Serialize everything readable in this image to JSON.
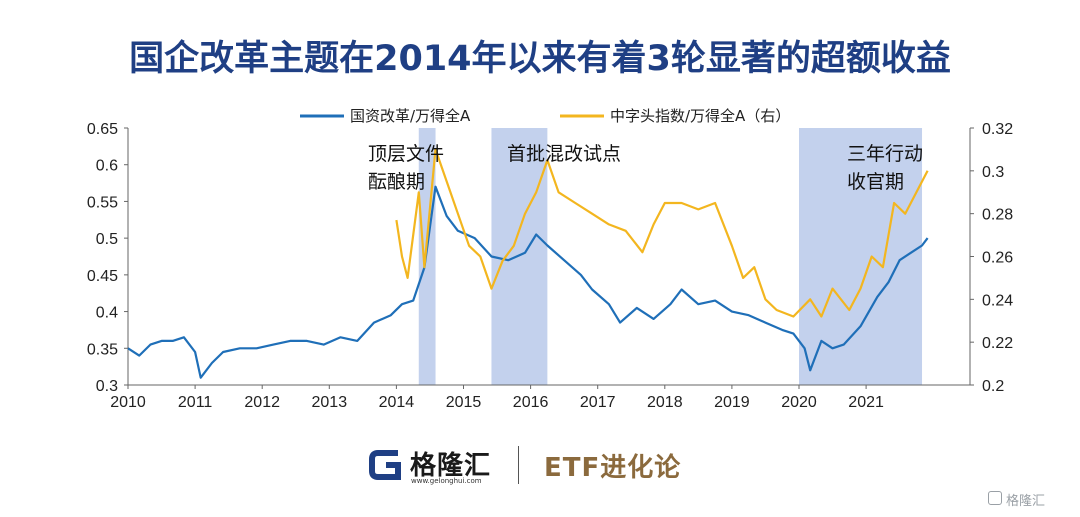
{
  "title": "国企改革主题在2014年以来有着3轮显著的超额收益",
  "chart_data": {
    "type": "line",
    "x_ticks": [
      "2010",
      "2011",
      "2012",
      "2013",
      "2014",
      "2015",
      "2016",
      "2017",
      "2018",
      "2019",
      "2020",
      "2021"
    ],
    "y_left": {
      "ticks": [
        "0.3",
        "0.35",
        "0.4",
        "0.45",
        "0.5",
        "0.55",
        "0.6",
        "0.65"
      ],
      "range": [
        0.3,
        0.65
      ]
    },
    "y_right": {
      "ticks": [
        "0.2",
        "0.22",
        "0.24",
        "0.26",
        "0.28",
        "0.3",
        "0.32"
      ],
      "range": [
        0.2,
        0.32
      ]
    },
    "grid": false,
    "legend_position": "top-center",
    "series": [
      {
        "name": "国资改革/万得全A",
        "axis": "left",
        "color": "#1f6fb8",
        "points": [
          [
            "2010-01",
            0.35
          ],
          [
            "2010-03",
            0.34
          ],
          [
            "2010-05",
            0.355
          ],
          [
            "2010-07",
            0.36
          ],
          [
            "2010-09",
            0.36
          ],
          [
            "2010-11",
            0.365
          ],
          [
            "2011-01",
            0.345
          ],
          [
            "2011-02",
            0.31
          ],
          [
            "2011-04",
            0.33
          ],
          [
            "2011-06",
            0.345
          ],
          [
            "2011-09",
            0.35
          ],
          [
            "2011-12",
            0.35
          ],
          [
            "2012-03",
            0.355
          ],
          [
            "2012-06",
            0.36
          ],
          [
            "2012-09",
            0.36
          ],
          [
            "2012-12",
            0.355
          ],
          [
            "2013-03",
            0.365
          ],
          [
            "2013-06",
            0.36
          ],
          [
            "2013-09",
            0.385
          ],
          [
            "2013-12",
            0.395
          ],
          [
            "2014-02",
            0.41
          ],
          [
            "2014-04",
            0.415
          ],
          [
            "2014-06",
            0.46
          ],
          [
            "2014-08",
            0.57
          ],
          [
            "2014-10",
            0.53
          ],
          [
            "2014-12",
            0.51
          ],
          [
            "2015-03",
            0.5
          ],
          [
            "2015-06",
            0.475
          ],
          [
            "2015-09",
            0.47
          ],
          [
            "2015-12",
            0.48
          ],
          [
            "2016-02",
            0.505
          ],
          [
            "2016-04",
            0.49
          ],
          [
            "2016-07",
            0.47
          ],
          [
            "2016-10",
            0.45
          ],
          [
            "2016-12",
            0.43
          ],
          [
            "2017-03",
            0.41
          ],
          [
            "2017-05",
            0.385
          ],
          [
            "2017-08",
            0.405
          ],
          [
            "2017-11",
            0.39
          ],
          [
            "2018-02",
            0.41
          ],
          [
            "2018-04",
            0.43
          ],
          [
            "2018-07",
            0.41
          ],
          [
            "2018-10",
            0.415
          ],
          [
            "2019-01",
            0.4
          ],
          [
            "2019-04",
            0.395
          ],
          [
            "2019-07",
            0.385
          ],
          [
            "2019-10",
            0.375
          ],
          [
            "2019-12",
            0.37
          ],
          [
            "2020-02",
            0.35
          ],
          [
            "2020-03",
            0.32
          ],
          [
            "2020-05",
            0.36
          ],
          [
            "2020-07",
            0.35
          ],
          [
            "2020-09",
            0.355
          ],
          [
            "2020-12",
            0.38
          ],
          [
            "2021-03",
            0.42
          ],
          [
            "2021-05",
            0.44
          ],
          [
            "2021-07",
            0.47
          ],
          [
            "2021-09",
            0.48
          ],
          [
            "2021-11",
            0.49
          ],
          [
            "2021-12",
            0.5
          ]
        ]
      },
      {
        "name": "中字头指数/万得全A（右）",
        "axis": "right",
        "color": "#f3b61f",
        "points": [
          [
            "2014-01",
            0.277
          ],
          [
            "2014-02",
            0.26
          ],
          [
            "2014-03",
            0.25
          ],
          [
            "2014-05",
            0.29
          ],
          [
            "2014-06",
            0.255
          ],
          [
            "2014-08",
            0.31
          ],
          [
            "2014-10",
            0.295
          ],
          [
            "2014-12",
            0.28
          ],
          [
            "2015-02",
            0.265
          ],
          [
            "2015-04",
            0.26
          ],
          [
            "2015-06",
            0.245
          ],
          [
            "2015-08",
            0.258
          ],
          [
            "2015-10",
            0.265
          ],
          [
            "2015-12",
            0.28
          ],
          [
            "2016-02",
            0.29
          ],
          [
            "2016-04",
            0.305
          ],
          [
            "2016-06",
            0.29
          ],
          [
            "2016-09",
            0.285
          ],
          [
            "2016-12",
            0.28
          ],
          [
            "2017-03",
            0.275
          ],
          [
            "2017-06",
            0.272
          ],
          [
            "2017-09",
            0.262
          ],
          [
            "2017-11",
            0.275
          ],
          [
            "2018-01",
            0.285
          ],
          [
            "2018-04",
            0.285
          ],
          [
            "2018-07",
            0.282
          ],
          [
            "2018-10",
            0.285
          ],
          [
            "2019-01",
            0.265
          ],
          [
            "2019-03",
            0.25
          ],
          [
            "2019-05",
            0.255
          ],
          [
            "2019-07",
            0.24
          ],
          [
            "2019-09",
            0.235
          ],
          [
            "2019-12",
            0.232
          ],
          [
            "2020-03",
            0.24
          ],
          [
            "2020-05",
            0.232
          ],
          [
            "2020-07",
            0.245
          ],
          [
            "2020-10",
            0.235
          ],
          [
            "2020-12",
            0.245
          ],
          [
            "2021-02",
            0.26
          ],
          [
            "2021-04",
            0.255
          ],
          [
            "2021-06",
            0.285
          ],
          [
            "2021-08",
            0.28
          ],
          [
            "2021-10",
            0.29
          ],
          [
            "2021-12",
            0.3
          ]
        ]
      }
    ],
    "shaded_periods": [
      {
        "start": "2014-05",
        "end": "2014-08",
        "label_lines": [
          "顶层文件",
          "酝酿期"
        ]
      },
      {
        "start": "2015-06",
        "end": "2016-04",
        "label_lines": [
          "首批混改试点"
        ]
      },
      {
        "start": "2020-01",
        "end": "2021-11",
        "label_lines": [
          "三年行动",
          "收官期"
        ]
      }
    ]
  },
  "footer": {
    "logo_name": "格隆汇",
    "logo_url": "www.gelonghui.com",
    "brand": "ETF进化论",
    "watermark": "格隆汇"
  }
}
